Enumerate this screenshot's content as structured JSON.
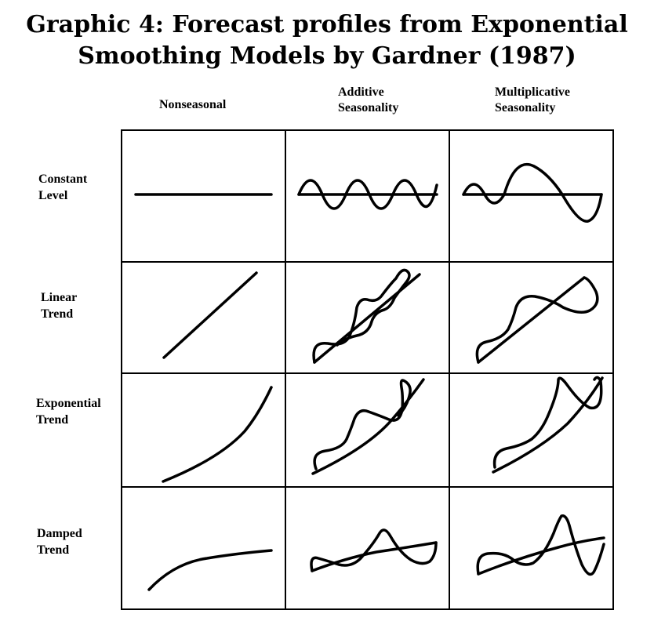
{
  "title": {
    "line1": "Graphic 4: Forecast profiles from Exponential",
    "line2": "Smoothing Models by Gardner (1987)"
  },
  "columns": [
    {
      "line1": "Nonseasonal",
      "line2": ""
    },
    {
      "line1": "Additive",
      "line2": "Seasonality"
    },
    {
      "line1": "Multiplicative",
      "line2": "Seasonality"
    }
  ],
  "rows": [
    {
      "line1": "Constant",
      "line2": "Level"
    },
    {
      "line1": "Linear",
      "line2": "Trend"
    },
    {
      "line1": "Exponential",
      "line2": "Trend"
    },
    {
      "line1": "Damped",
      "line2": "Trend"
    }
  ]
}
